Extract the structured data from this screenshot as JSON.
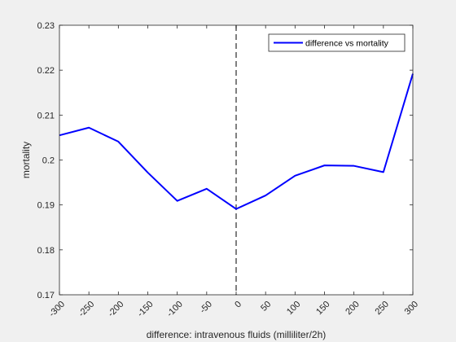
{
  "chart_data": {
    "type": "line",
    "xlabel": "difference: intravenous fluids (milliliter/2h)",
    "ylabel": "mortality",
    "xlim": [
      -300,
      300
    ],
    "ylim": [
      0.17,
      0.23
    ],
    "x_ticks": [
      -300,
      -250,
      -200,
      -150,
      -100,
      -50,
      0,
      50,
      100,
      150,
      200,
      250,
      300
    ],
    "y_ticks": [
      0.17,
      0.18,
      0.19,
      0.2,
      0.21,
      0.22,
      0.23
    ],
    "x_tick_labels": [
      "-300",
      "-250",
      "-200",
      "-150",
      "-100",
      "-50",
      "0",
      "50",
      "100",
      "150",
      "200",
      "250",
      "300"
    ],
    "y_tick_labels": [
      "0.17",
      "0.18",
      "0.19",
      "0.2",
      "0.21",
      "0.22",
      "0.23"
    ],
    "grid": false,
    "legend_position": "top-right",
    "reference_line": {
      "x": 0,
      "style": "dashed",
      "color": "#555555"
    },
    "series": [
      {
        "name": "difference vs mortality",
        "color": "#0000ff",
        "x": [
          -300,
          -250,
          -200,
          -150,
          -100,
          -50,
          0,
          50,
          100,
          150,
          200,
          250,
          300
        ],
        "y": [
          0.2055,
          0.2072,
          0.2041,
          0.1972,
          0.1909,
          0.1936,
          0.1891,
          0.1921,
          0.1965,
          0.1988,
          0.1987,
          0.1973,
          0.2192
        ]
      }
    ]
  }
}
